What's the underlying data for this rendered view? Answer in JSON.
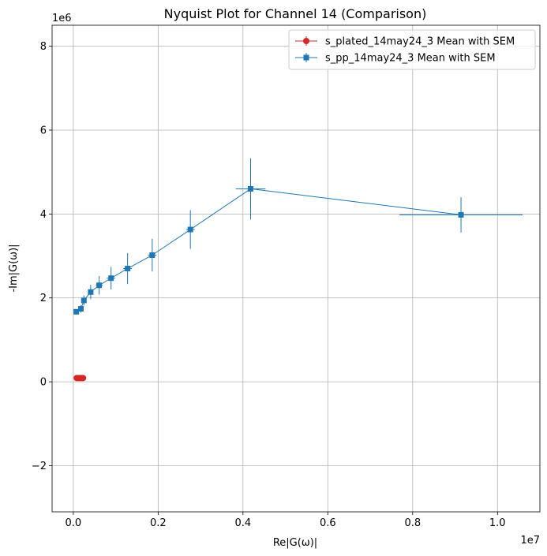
{
  "chart_data": {
    "type": "scatter",
    "title": "Nyquist Plot for Channel 14 (Comparison)",
    "xlabel": "Re|G(ω)|",
    "ylabel": "-Im|G(ω)|",
    "x_offset_label": "1e7",
    "y_offset_label": "1e6",
    "xlim": [
      -0.05,
      1.1
    ],
    "ylim": [
      -3.1,
      8.5
    ],
    "x_ticks": [
      0.0,
      0.2,
      0.4,
      0.6,
      0.8,
      1.0
    ],
    "x_tick_labels": [
      "0.0",
      "0.2",
      "0.4",
      "0.6",
      "0.8",
      "1.0"
    ],
    "y_ticks": [
      -2,
      0,
      2,
      4,
      6,
      8
    ],
    "y_tick_labels": [
      "−2",
      "0",
      "2",
      "4",
      "6",
      "8"
    ],
    "grid": true,
    "legend_position": "top-right",
    "series": [
      {
        "name": "s_plated_14may24_3 Mean with SEM",
        "color": "#d62728",
        "marker": "circle",
        "x": [
          0.008,
          0.011,
          0.014,
          0.017,
          0.02,
          0.023
        ],
        "y": [
          0.09,
          0.09,
          0.09,
          0.09,
          0.09,
          0.09
        ],
        "xerr": [
          0,
          0,
          0,
          0,
          0,
          0
        ],
        "yerr": [
          0.02,
          0.02,
          0.02,
          0.02,
          0.02,
          0.02
        ]
      },
      {
        "name": "s_pp_14may24_3 Mean with SEM",
        "color": "#1f77b4",
        "marker": "square",
        "x": [
          0.007,
          0.018,
          0.025,
          0.041,
          0.061,
          0.089,
          0.128,
          0.186,
          0.276,
          0.418,
          0.914
        ],
        "y": [
          1.67,
          1.74,
          1.94,
          2.14,
          2.3,
          2.47,
          2.7,
          3.02,
          3.63,
          4.6,
          3.98
        ],
        "xerr": [
          0.003,
          0.004,
          0.004,
          0.005,
          0.008,
          0.01,
          0.01,
          0.01,
          0.01,
          0.035,
          0.145
        ],
        "yerr": [
          0.05,
          0.09,
          0.12,
          0.17,
          0.22,
          0.27,
          0.37,
          0.39,
          0.46,
          0.73,
          0.42
        ]
      }
    ]
  }
}
